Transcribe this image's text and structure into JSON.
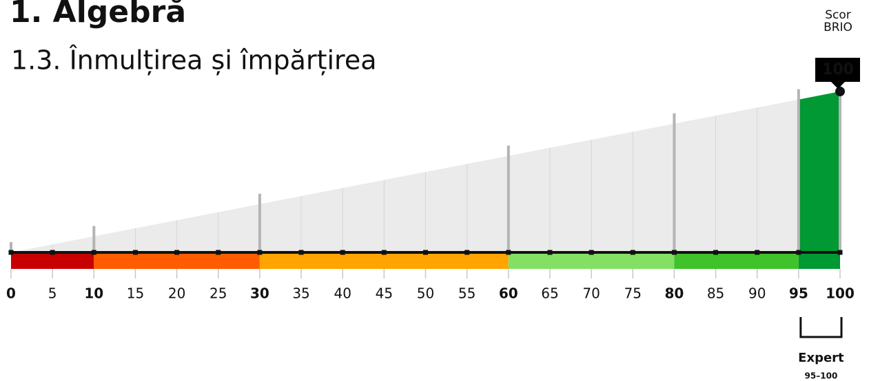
{
  "chart_data": {
    "type": "gauge",
    "title": "1. Algebră",
    "subtitle": "1.3. Înmulțirea și împărțirea",
    "score_label_lines": [
      "Scor",
      "BRIO"
    ],
    "value": 100,
    "xlim": [
      0,
      100
    ],
    "xticks": [
      0,
      5,
      10,
      15,
      20,
      25,
      30,
      35,
      40,
      45,
      50,
      55,
      60,
      65,
      70,
      75,
      80,
      85,
      90,
      95,
      100
    ],
    "bands": [
      {
        "from": 0,
        "to": 10,
        "color": "#c80000"
      },
      {
        "from": 10,
        "to": 30,
        "color": "#ff5c00"
      },
      {
        "from": 30,
        "to": 60,
        "color": "#ffa400"
      },
      {
        "from": 60,
        "to": 80,
        "color": "#84e064"
      },
      {
        "from": 80,
        "to": 95,
        "color": "#40c22a"
      },
      {
        "from": 95,
        "to": 100,
        "color": "#009933"
      }
    ],
    "level": {
      "name": "Expert",
      "range": "95–100"
    },
    "area_color": "#ebebeb"
  }
}
